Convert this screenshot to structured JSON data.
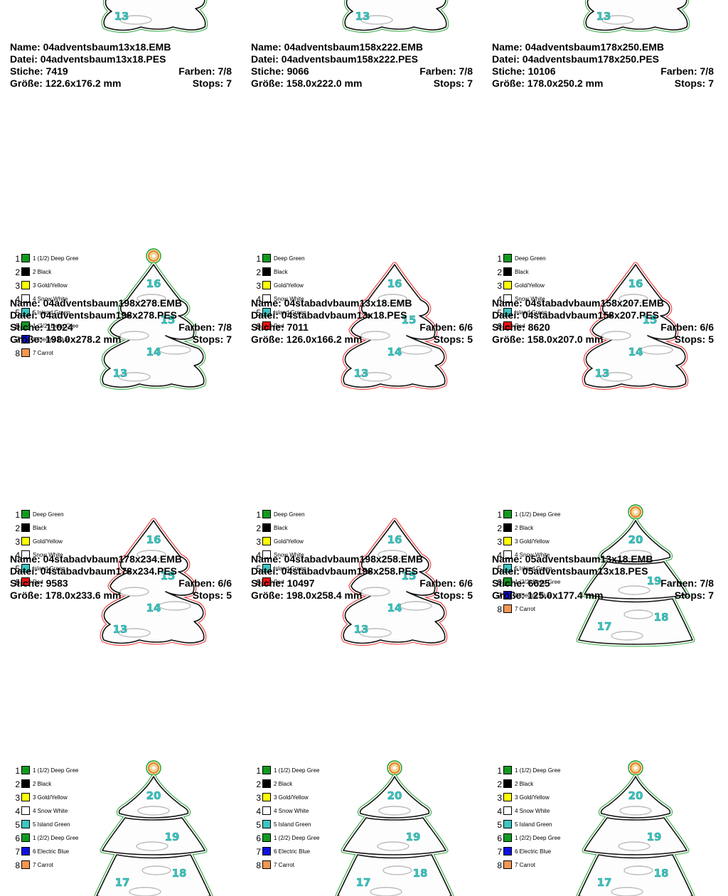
{
  "labels": {
    "name": "Name:",
    "file": "Datei:",
    "stitches": "Stiche:",
    "colors": "Farben:",
    "size": "Größe:",
    "stops": "Stops:"
  },
  "palette": {
    "deep_green": "#119a21",
    "black": "#000000",
    "gold_yellow": "#ffff00",
    "snow_white": "#ffffff",
    "island_green": "#3cc6c2",
    "red": "#ee1111",
    "electric_blue": "#1010e0",
    "carrot": "#f49652"
  },
  "legends": {
    "adv": [
      {
        "num": "1",
        "label": "1 (1/2) Deep Gree",
        "color": "#119a21"
      },
      {
        "num": "2",
        "label": "2 Black",
        "color": "#000000"
      },
      {
        "num": "3",
        "label": "3 Gold/Yellow",
        "color": "#ffff00"
      },
      {
        "num": "4",
        "label": "4 Snow White",
        "color": "#ffffff"
      },
      {
        "num": "5",
        "label": "5 Island Green",
        "color": "#3cc6c2"
      },
      {
        "num": "6",
        "label": "1 (2/2) Deep Gree",
        "color": "#119a21"
      },
      {
        "num": "7",
        "label": "6 Electric Blue",
        "color": "#1010e0"
      },
      {
        "num": "8",
        "label": "7 Carrot",
        "color": "#f49652"
      }
    ],
    "stab": [
      {
        "num": "1",
        "label": "Deep Green",
        "color": "#119a21"
      },
      {
        "num": "2",
        "label": "Black",
        "color": "#000000"
      },
      {
        "num": "3",
        "label": "Gold/Yellow",
        "color": "#ffff00"
      },
      {
        "num": "4",
        "label": "Snow White",
        "color": "#ffffff"
      },
      {
        "num": "5",
        "label": "Island Green",
        "color": "#3cc6c2"
      },
      {
        "num": "6",
        "label": "Red",
        "color": "#ee1111"
      }
    ]
  },
  "tree_numbers": {
    "four": [
      "16",
      "15",
      "14",
      "13"
    ],
    "five": [
      "20",
      "19",
      "18",
      "17"
    ]
  },
  "designs": [
    {
      "name": "04adventsbaum13x18.EMB",
      "file": "04adventsbaum13x18.PES",
      "stitches": "7419",
      "colors": "7/8",
      "size": "122.6x176.2 mm",
      "stops": "7"
    },
    {
      "name": "04adventsbaum158x222.EMB",
      "file": "04adventsbaum158x222.PES",
      "stitches": "9066",
      "colors": "7/8",
      "size": "158.0x222.0 mm",
      "stops": "7"
    },
    {
      "name": "04adventsbaum178x250.EMB",
      "file": "04adventsbaum178x250.PES",
      "stitches": "10106",
      "colors": "7/8",
      "size": "178.0x250.2 mm",
      "stops": "7"
    },
    {
      "name": "04adventsbaum198x278.EMB",
      "file": "04adventsbaum198x278.PES",
      "stitches": "11024",
      "colors": "7/8",
      "size": "198.0x278.2 mm",
      "stops": "7",
      "legend": "adv",
      "tree": "four",
      "outline": "#119a21",
      "loop": true
    },
    {
      "name": "04stabadvbaum13x18.EMB",
      "file": "04stabadvbaum13x18.PES",
      "stitches": "7011",
      "colors": "6/6",
      "size": "126.0x166.2 mm",
      "stops": "5",
      "legend": "stab",
      "tree": "four",
      "outline": "#ee1111",
      "loop": false
    },
    {
      "name": "04stabadvbaum158x207.EMB",
      "file": "04stabadvbaum158x207.PES",
      "stitches": "8620",
      "colors": "6/6",
      "size": "158.0x207.0 mm",
      "stops": "5",
      "legend": "stab",
      "tree": "four",
      "outline": "#ee1111",
      "loop": false
    },
    {
      "name": "04stabadvbaum178x234.EMB",
      "file": "04stabadvbaum178x234.PES",
      "stitches": "9583",
      "colors": "6/6",
      "size": "178.0x233.6 mm",
      "stops": "5",
      "legend": "stab",
      "tree": "four",
      "outline": "#ee1111",
      "loop": false
    },
    {
      "name": "04stabadvbaum198x258.EMB",
      "file": "04stabadvbaum198x258.PES",
      "stitches": "10497",
      "colors": "6/6",
      "size": "198.0x258.4 mm",
      "stops": "5",
      "legend": "stab",
      "tree": "four",
      "outline": "#ee1111",
      "loop": false
    },
    {
      "name": "05adventsbaum13x18.EMB",
      "file": "05adventsbaum13x18.PES",
      "stitches": "6625",
      "colors": "7/8",
      "size": "125.0x177.4 mm",
      "stops": "7",
      "legend": "adv",
      "tree": "five",
      "outline": "#119a21",
      "loop": true
    },
    {
      "legend": "adv",
      "tree": "five",
      "outline": "#119a21",
      "loop": true
    },
    {
      "legend": "adv",
      "tree": "five",
      "outline": "#119a21",
      "loop": true
    },
    {
      "legend": "adv",
      "tree": "five",
      "outline": "#119a21",
      "loop": true
    }
  ]
}
